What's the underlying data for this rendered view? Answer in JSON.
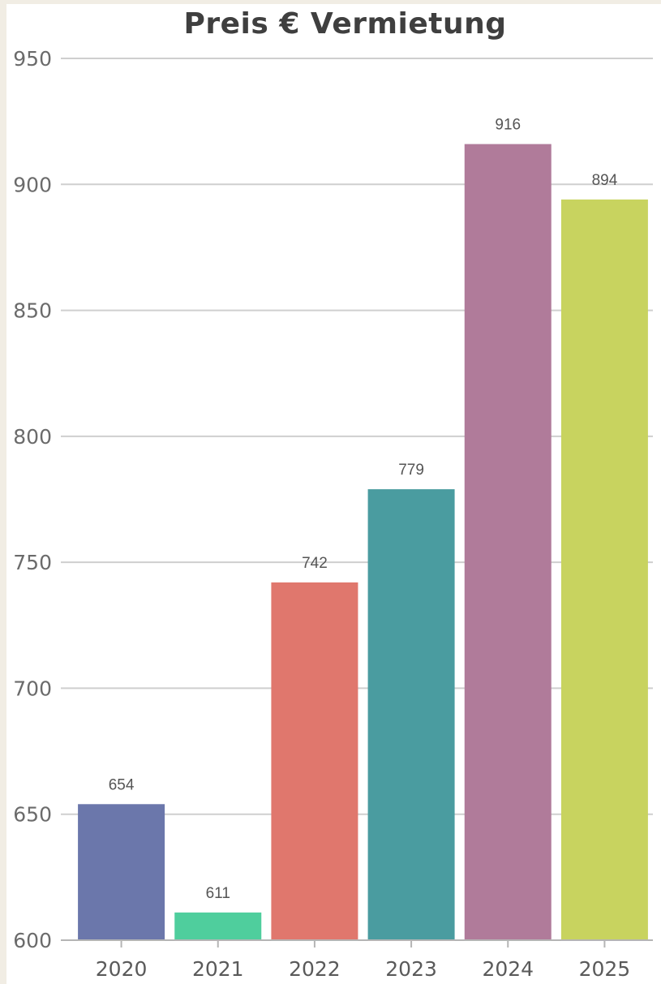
{
  "chart_data": {
    "type": "bar",
    "title": "Preis € Vermietung",
    "xlabel": "",
    "ylabel": "",
    "categories": [
      "2020",
      "2021",
      "2022",
      "2023",
      "2024",
      "2025"
    ],
    "values": [
      654,
      611,
      742,
      779,
      916,
      894
    ],
    "data_labels": [
      "654",
      "611",
      "742",
      "779",
      "916",
      "894"
    ],
    "colors": [
      "#6b77ab",
      "#4fce9d",
      "#e0776d",
      "#4a9ca0",
      "#b07b9a",
      "#c8d35f"
    ],
    "ylim": [
      600,
      950
    ],
    "yticks": [
      600,
      650,
      700,
      750,
      800,
      850,
      900,
      950
    ],
    "ytick_labels": [
      "600",
      "650",
      "700",
      "750",
      "800",
      "850",
      "900",
      "950"
    ],
    "grid": true,
    "legend": "none"
  }
}
